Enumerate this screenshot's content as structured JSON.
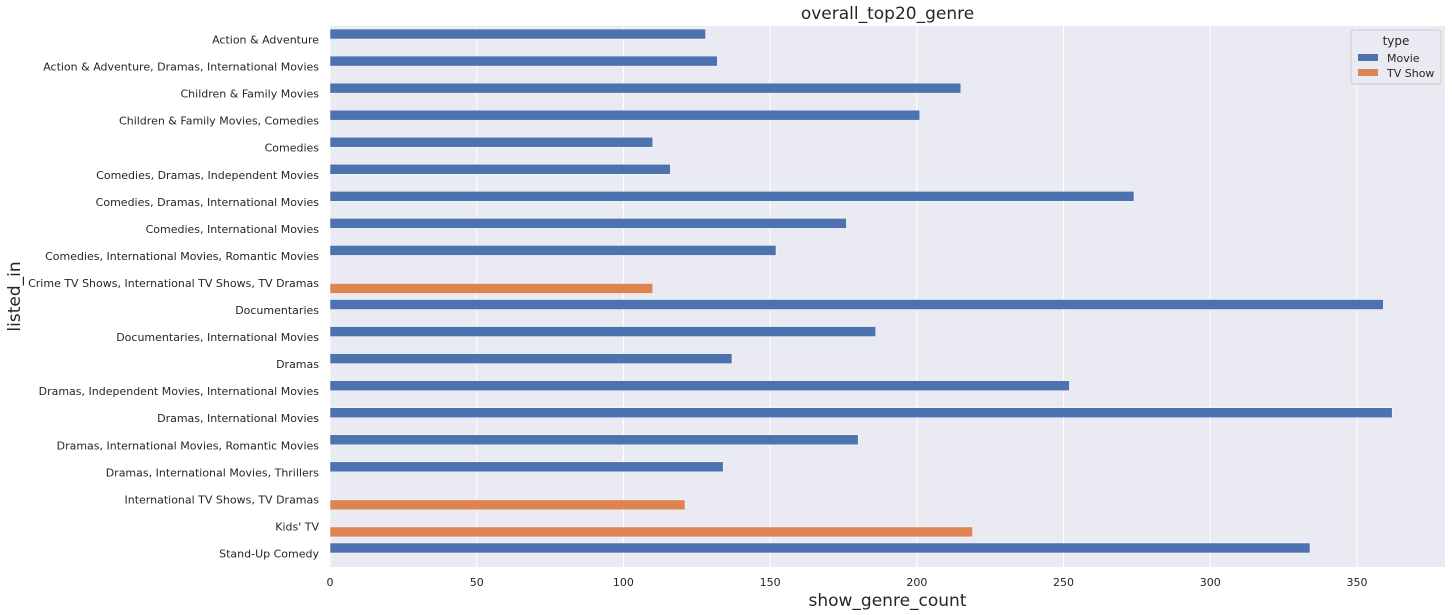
{
  "chart_data": {
    "type": "bar",
    "orientation": "horizontal",
    "title": "overall_top20_genre",
    "xlabel": "show_genre_count",
    "ylabel": "listed_in",
    "xlim": [
      0,
      380
    ],
    "xticks": [
      0,
      50,
      100,
      150,
      200,
      250,
      300,
      350
    ],
    "grid": true,
    "legend": {
      "title": "type",
      "placement": "top-right"
    },
    "series": [
      {
        "name": "Movie",
        "color": "#4c72b0"
      },
      {
        "name": "TV Show",
        "color": "#dd8452"
      }
    ],
    "categories": [
      "Action & Adventure",
      "Action & Adventure, Dramas, International Movies",
      "Children & Family Movies",
      "Children & Family Movies, Comedies",
      "Comedies",
      "Comedies, Dramas, Independent Movies",
      "Comedies, Dramas, International Movies",
      "Comedies, International Movies",
      "Comedies, International Movies, Romantic Movies",
      "Crime TV Shows, International TV Shows, TV Dramas",
      "Documentaries",
      "Documentaries, International Movies",
      "Dramas",
      "Dramas, Independent Movies, International Movies",
      "Dramas, International Movies",
      "Dramas, International Movies, Romantic Movies",
      "Dramas, International Movies, Thrillers",
      "International TV Shows, TV Dramas",
      "Kids' TV",
      "Stand-Up Comedy"
    ],
    "bars": [
      {
        "category": "Action & Adventure",
        "type": "Movie",
        "value": 128
      },
      {
        "category": "Action & Adventure, Dramas, International Movies",
        "type": "Movie",
        "value": 132
      },
      {
        "category": "Children & Family Movies",
        "type": "Movie",
        "value": 215
      },
      {
        "category": "Children & Family Movies, Comedies",
        "type": "Movie",
        "value": 201
      },
      {
        "category": "Comedies",
        "type": "Movie",
        "value": 110
      },
      {
        "category": "Comedies, Dramas, Independent Movies",
        "type": "Movie",
        "value": 116
      },
      {
        "category": "Comedies, Dramas, International Movies",
        "type": "Movie",
        "value": 274
      },
      {
        "category": "Comedies, International Movies",
        "type": "Movie",
        "value": 176
      },
      {
        "category": "Comedies, International Movies, Romantic Movies",
        "type": "Movie",
        "value": 152
      },
      {
        "category": "Crime TV Shows, International TV Shows, TV Dramas",
        "type": "TV Show",
        "value": 110
      },
      {
        "category": "Documentaries",
        "type": "Movie",
        "value": 359
      },
      {
        "category": "Documentaries, International Movies",
        "type": "Movie",
        "value": 186
      },
      {
        "category": "Dramas",
        "type": "Movie",
        "value": 137
      },
      {
        "category": "Dramas, Independent Movies, International Movies",
        "type": "Movie",
        "value": 252
      },
      {
        "category": "Dramas, International Movies",
        "type": "Movie",
        "value": 362
      },
      {
        "category": "Dramas, International Movies, Romantic Movies",
        "type": "Movie",
        "value": 180
      },
      {
        "category": "Dramas, International Movies, Thrillers",
        "type": "Movie",
        "value": 134
      },
      {
        "category": "International TV Shows, TV Dramas",
        "type": "TV Show",
        "value": 121
      },
      {
        "category": "Kids' TV",
        "type": "TV Show",
        "value": 219
      },
      {
        "category": "Stand-Up Comedy",
        "type": "Movie",
        "value": 334
      }
    ]
  },
  "colors": {
    "plot_background": "#eaeaf2",
    "grid": "#ffffff",
    "text": "#262626"
  }
}
